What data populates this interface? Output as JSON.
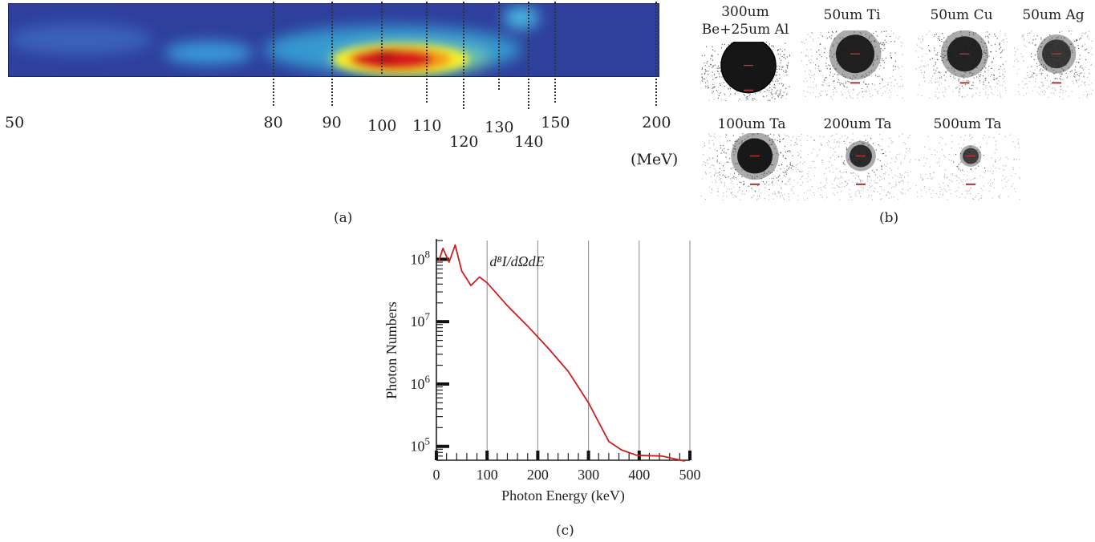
{
  "panel_a": {
    "letter": "(a)",
    "unit": "(MeV)",
    "ticks": [
      {
        "value": 50,
        "label": "50"
      },
      {
        "value": 80,
        "label": "80"
      },
      {
        "value": 90,
        "label": "90"
      },
      {
        "value": 100,
        "label": "100"
      },
      {
        "value": 110,
        "label": "110"
      },
      {
        "value": 120,
        "label": "120"
      },
      {
        "value": 130,
        "label": "130"
      },
      {
        "value": 140,
        "label": "140"
      },
      {
        "value": 150,
        "label": "150"
      },
      {
        "value": 200,
        "label": "200"
      }
    ],
    "colors": {
      "background": "#2e3f9c",
      "glow": "#3aa5e3",
      "mid": "#f5ee2a",
      "hot": "#d81e1e"
    }
  },
  "panel_b": {
    "letter": "(b)",
    "filters": [
      {
        "label": "300um Be+25um Al"
      },
      {
        "label": "50um Ti"
      },
      {
        "label": "50um Cu"
      },
      {
        "label": "50um Ag"
      },
      {
        "label": "100um Ta"
      },
      {
        "label": "200um Ta"
      },
      {
        "label": "500um Ta"
      }
    ],
    "filter_label_lines": [
      [
        "300um",
        "Be+25um Al"
      ],
      [
        "50um Ti"
      ],
      [
        "50um Cu"
      ],
      [
        "50um Ag"
      ],
      [
        "100um Ta"
      ],
      [
        "200um Ta"
      ],
      [
        "500um Ta"
      ]
    ]
  },
  "panel_c": {
    "letter": "(c)"
  },
  "chart_data": [
    {
      "type": "line",
      "title": "",
      "xlabel": "Photon Energy (keV)",
      "ylabel": "Photon Numbers",
      "annotation": "d⁸I/dΩdE",
      "xlim": [
        0,
        500
      ],
      "ylim": [
        60000,
        200000000
      ],
      "yscale": "log",
      "grid": "vertical",
      "x_ticks": [
        0,
        100,
        200,
        300,
        400,
        500
      ],
      "x_tick_labels": [
        "0",
        "100",
        "200",
        "300",
        "400",
        "500"
      ],
      "y_tick_labels": [
        {
          "base": "10",
          "exp": "5",
          "value": 100000
        },
        {
          "base": "10",
          "exp": "6",
          "value": 1000000
        },
        {
          "base": "10",
          "exp": "7",
          "value": 10000000
        },
        {
          "base": "10",
          "exp": "8",
          "value": 100000000
        }
      ],
      "series": [
        {
          "color": "#cc1f1f",
          "x": [
            5,
            13,
            25,
            37,
            50,
            68,
            85,
            100,
            140,
            180,
            220,
            260,
            300,
            340,
            365,
            395,
            445,
            490
          ],
          "y": [
            95000000,
            150000000,
            90000000,
            170000000,
            65000000,
            38000000,
            52000000,
            42000000,
            18000000,
            8500000,
            3800000,
            1600000,
            500000,
            120000,
            88000,
            72000,
            70000,
            58000
          ]
        }
      ]
    }
  ]
}
